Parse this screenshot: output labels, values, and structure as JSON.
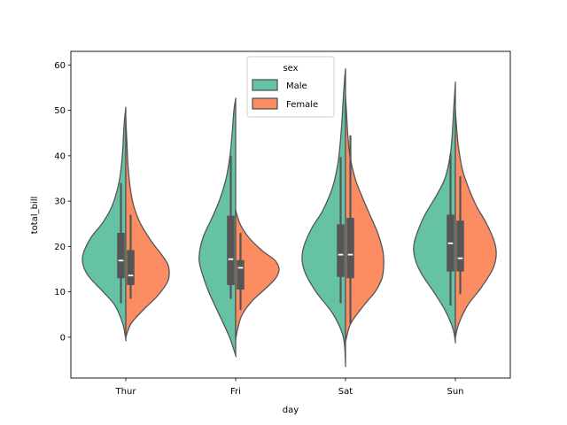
{
  "chart_data": {
    "type": "violin",
    "split": true,
    "title": "",
    "xlabel": "day",
    "ylabel": "total_bill",
    "categories": [
      "Thur",
      "Fri",
      "Sat",
      "Sun"
    ],
    "ylim": [
      -9,
      63
    ],
    "yticks": [
      0,
      10,
      20,
      30,
      40,
      50,
      60
    ],
    "legend": {
      "title": "sex",
      "position": "top-center",
      "entries": [
        {
          "name": "Male",
          "color": "#66c2a5"
        },
        {
          "name": "Female",
          "color": "#fc8d62"
        }
      ]
    },
    "series": [
      {
        "name": "Male",
        "color": "#66c2a5",
        "violins": [
          {
            "category": "Thur",
            "ymin": -0.5,
            "ymax": 50.5,
            "profile": [
              [
                -0.5,
                0
              ],
              [
                3,
                0.07
              ],
              [
                7,
                0.25
              ],
              [
                10,
                0.52
              ],
              [
                13,
                0.82
              ],
              [
                15,
                0.95
              ],
              [
                17,
                1.0
              ],
              [
                19,
                0.96
              ],
              [
                22,
                0.8
              ],
              [
                25,
                0.55
              ],
              [
                28,
                0.36
              ],
              [
                31,
                0.24
              ],
              [
                35,
                0.14
              ],
              [
                40,
                0.08
              ],
              [
                45,
                0.05
              ],
              [
                48,
                0.03
              ],
              [
                50.5,
                0
              ]
            ],
            "q1": 13.0,
            "median": 16.9,
            "q3": 23.0,
            "whisker_low": 7.5,
            "whisker_high": 34.0
          },
          {
            "category": "Fri",
            "ymin": -4,
            "ymax": 52.5,
            "profile": [
              [
                -4,
                0
              ],
              [
                0,
                0.14
              ],
              [
                5,
                0.38
              ],
              [
                10,
                0.62
              ],
              [
                15,
                0.8
              ],
              [
                18,
                0.84
              ],
              [
                22,
                0.75
              ],
              [
                26,
                0.56
              ],
              [
                30,
                0.38
              ],
              [
                35,
                0.22
              ],
              [
                40,
                0.13
              ],
              [
                45,
                0.08
              ],
              [
                50,
                0.04
              ],
              [
                52.5,
                0
              ]
            ],
            "q1": 11.5,
            "median": 17.2,
            "q3": 26.8,
            "whisker_low": 8.5,
            "whisker_high": 40.0
          },
          {
            "category": "Sat",
            "ymin": -6,
            "ymax": 59,
            "profile": [
              [
                -6,
                0
              ],
              [
                0,
                0.05
              ],
              [
                5,
                0.28
              ],
              [
                10,
                0.68
              ],
              [
                14,
                0.92
              ],
              [
                17,
                1.0
              ],
              [
                20,
                0.96
              ],
              [
                24,
                0.78
              ],
              [
                28,
                0.52
              ],
              [
                33,
                0.3
              ],
              [
                38,
                0.18
              ],
              [
                43,
                0.12
              ],
              [
                48,
                0.08
              ],
              [
                53,
                0.05
              ],
              [
                57,
                0.02
              ],
              [
                59,
                0
              ]
            ],
            "q1": 13.3,
            "median": 18.2,
            "q3": 24.9,
            "whisker_low": 7.5,
            "whisker_high": 39.7
          },
          {
            "category": "Sun",
            "ymin": -1,
            "ymax": 56,
            "profile": [
              [
                -1,
                0
              ],
              [
                2,
                0.06
              ],
              [
                6,
                0.24
              ],
              [
                10,
                0.5
              ],
              [
                14,
                0.78
              ],
              [
                17,
                0.92
              ],
              [
                20,
                0.96
              ],
              [
                23,
                0.88
              ],
              [
                27,
                0.7
              ],
              [
                31,
                0.45
              ],
              [
                35,
                0.24
              ],
              [
                40,
                0.12
              ],
              [
                45,
                0.07
              ],
              [
                50,
                0.04
              ],
              [
                53,
                0.02
              ],
              [
                56,
                0
              ]
            ],
            "q1": 14.5,
            "median": 20.7,
            "q3": 27.0,
            "whisker_low": 7.0,
            "whisker_high": 40.5
          }
        ]
      },
      {
        "name": "Female",
        "color": "#fc8d62",
        "violins": [
          {
            "category": "Thur",
            "ymin": 0,
            "ymax": 48,
            "profile": [
              [
                0,
                0
              ],
              [
                3,
                0.12
              ],
              [
                6,
                0.4
              ],
              [
                9,
                0.72
              ],
              [
                12,
                0.95
              ],
              [
                14,
                1.0
              ],
              [
                16,
                0.97
              ],
              [
                18,
                0.84
              ],
              [
                21,
                0.6
              ],
              [
                25,
                0.34
              ],
              [
                29,
                0.18
              ],
              [
                33,
                0.1
              ],
              [
                38,
                0.05
              ],
              [
                43,
                0.025
              ],
              [
                48,
                0
              ]
            ],
            "q1": 11.5,
            "median": 13.6,
            "q3": 19.2,
            "whisker_low": 8.5,
            "whisker_high": 27.0
          },
          {
            "category": "Fri",
            "ymin": -0.5,
            "ymax": 28,
            "profile": [
              [
                -0.5,
                0
              ],
              [
                2,
                0.05
              ],
              [
                5,
                0.15
              ],
              [
                8,
                0.38
              ],
              [
                11,
                0.72
              ],
              [
                13,
                0.92
              ],
              [
                15,
                1.0
              ],
              [
                17,
                0.9
              ],
              [
                19,
                0.62
              ],
              [
                22,
                0.3
              ],
              [
                25,
                0.1
              ],
              [
                28,
                0
              ]
            ],
            "q1": 10.5,
            "median": 15.3,
            "q3": 17.0,
            "whisker_low": 6.0,
            "whisker_high": 23.0
          },
          {
            "category": "Sat",
            "ymin": -1,
            "ymax": 53,
            "profile": [
              [
                -1,
                0
              ],
              [
                3,
                0.12
              ],
              [
                7,
                0.42
              ],
              [
                10,
                0.68
              ],
              [
                13,
                0.84
              ],
              [
                16,
                0.88
              ],
              [
                19,
                0.86
              ],
              [
                23,
                0.74
              ],
              [
                27,
                0.56
              ],
              [
                31,
                0.38
              ],
              [
                35,
                0.22
              ],
              [
                40,
                0.1
              ],
              [
                45,
                0.05
              ],
              [
                50,
                0.02
              ],
              [
                53,
                0
              ]
            ],
            "q1": 13.0,
            "median": 18.2,
            "q3": 26.3,
            "whisker_low": 3.0,
            "whisker_high": 44.5
          },
          {
            "category": "Sun",
            "ymin": 0,
            "ymax": 50,
            "profile": [
              [
                0,
                0
              ],
              [
                3,
                0.08
              ],
              [
                7,
                0.28
              ],
              [
                11,
                0.6
              ],
              [
                15,
                0.86
              ],
              [
                18,
                0.94
              ],
              [
                21,
                0.9
              ],
              [
                25,
                0.72
              ],
              [
                29,
                0.48
              ],
              [
                33,
                0.3
              ],
              [
                37,
                0.16
              ],
              [
                42,
                0.07
              ],
              [
                46,
                0.03
              ],
              [
                50,
                0
              ]
            ],
            "q1": 14.5,
            "median": 17.4,
            "q3": 25.7,
            "whisker_low": 9.5,
            "whisker_high": 35.5
          }
        ]
      }
    ]
  }
}
